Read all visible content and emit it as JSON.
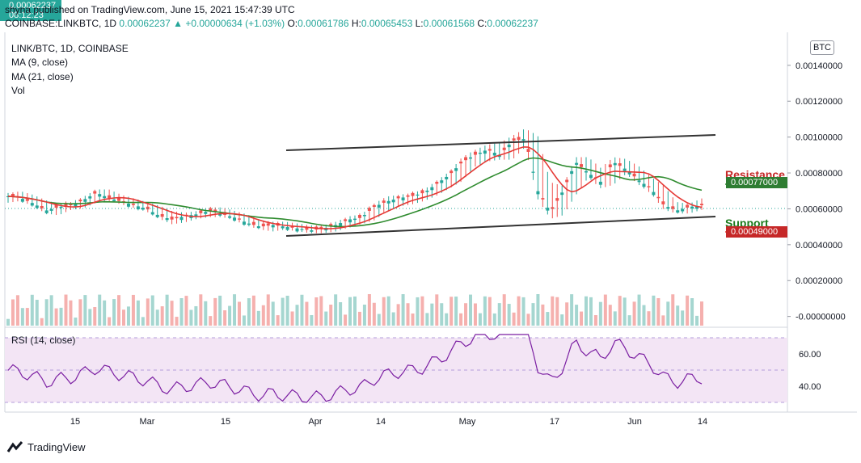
{
  "header": {
    "published": "shyna published on TradingView.com, June 15, 2021 15:47:39 UTC",
    "symbol": "COINBASE:LINKBTC, 1D",
    "change": "0.00062237 ▲ +0.00000634 (+1.03%)",
    "o_label": "O:",
    "o_value": "0.00061786",
    "h_label": "H:",
    "h_value": "0.00065453",
    "l_label": "L:",
    "l_value": "0.00061568",
    "c_label": "C:",
    "c_value": "0.00062237"
  },
  "legend": {
    "title": "LINK/BTC, 1D, COINBASE",
    "ma9": "MA (9, close)",
    "ma21": "MA (21, close)",
    "vol": "Vol",
    "rsi": "RSI (14, close)"
  },
  "currency_button": "BTC",
  "annotations": {
    "resistance_label": "Resistance",
    "resistance_value": "0.00077000",
    "support_label": "Support",
    "support_value": "0.00049000",
    "last_price": "0.00062237",
    "countdown": "08:12:23"
  },
  "footer": {
    "brand": "TradingView"
  },
  "colors": {
    "up": "#26a69a",
    "down": "#ef5350",
    "ma9": "#e53935",
    "ma21": "#2e8b2e",
    "rsi_line": "#7b1fa2",
    "rsi_band": "#f3e5f5",
    "resistance": "#c62828",
    "support": "#1b7a1b",
    "channel": "#333333"
  },
  "chart_data": {
    "type": "candlestick",
    "price_axis_ticks": [
      "0.00140000",
      "0.00120000",
      "0.00100000",
      "0.00080000",
      "0.00060000",
      "0.00040000",
      "0.00020000",
      "-0.00000000"
    ],
    "rsi_axis_ticks": [
      "60.00",
      "40.00"
    ],
    "date_labels": [
      "15",
      "Mar",
      "15",
      "Apr",
      "14",
      "May",
      "17",
      "Jun",
      "14"
    ],
    "price_range": [
      -1e-05,
      0.00155
    ],
    "rsi_range": [
      25,
      75
    ],
    "rsi_bands": [
      70,
      30
    ],
    "ohlc_sample": [
      [
        0.00066,
        0.00068,
        0.00064,
        0.00067
      ],
      [
        0.00067,
        0.00069,
        0.00065,
        0.00066
      ],
      [
        0.00066,
        0.00067,
        0.00062,
        0.00063
      ],
      [
        0.00063,
        0.00064,
        0.00058,
        0.00059
      ],
      [
        0.00059,
        0.00062,
        0.00057,
        0.00061
      ],
      [
        0.00061,
        0.00063,
        0.0006,
        0.00062
      ],
      [
        0.00062,
        0.00066,
        0.00061,
        0.00065
      ],
      [
        0.00065,
        0.0007,
        0.00064,
        0.00069
      ],
      [
        0.00069,
        0.0007,
        0.00065,
        0.00066
      ],
      [
        0.00066,
        0.00067,
        0.00063,
        0.00064
      ],
      [
        0.00064,
        0.00065,
        0.00061,
        0.00062
      ],
      [
        0.00062,
        0.00063,
        0.00059,
        0.0006
      ],
      [
        0.0006,
        0.00061,
        0.00055,
        0.00056
      ],
      [
        0.00056,
        0.00058,
        0.00052,
        0.00054
      ],
      [
        0.00054,
        0.00057,
        0.00053,
        0.00056
      ],
      [
        0.00056,
        0.00058,
        0.00055,
        0.00057
      ],
      [
        0.00057,
        0.0006,
        0.00056,
        0.00059
      ],
      [
        0.00059,
        0.0006,
        0.00056,
        0.00057
      ],
      [
        0.00057,
        0.00058,
        0.00054,
        0.00055
      ],
      [
        0.00055,
        0.00056,
        0.00051,
        0.00052
      ],
      [
        0.00052,
        0.00053,
        0.00049,
        0.0005
      ],
      [
        0.0005,
        0.00052,
        0.00048,
        0.00051
      ],
      [
        0.00051,
        0.00052,
        0.00049,
        0.0005
      ],
      [
        0.0005,
        0.00051,
        0.00048,
        0.00049
      ],
      [
        0.00049,
        0.0005,
        0.00047,
        0.00048
      ],
      [
        0.00048,
        0.0005,
        0.00047,
        0.00049
      ],
      [
        0.00049,
        0.00052,
        0.00048,
        0.00051
      ],
      [
        0.00051,
        0.00055,
        0.0005,
        0.00054
      ],
      [
        0.00054,
        0.00056,
        0.00052,
        0.00055
      ],
      [
        0.00055,
        0.00062,
        0.00054,
        0.00061
      ],
      [
        0.00061,
        0.00066,
        0.00059,
        0.00064
      ],
      [
        0.00064,
        0.00067,
        0.00062,
        0.00066
      ],
      [
        0.00066,
        0.00068,
        0.00063,
        0.00067
      ],
      [
        0.00067,
        0.0007,
        0.00065,
        0.00069
      ],
      [
        0.00069,
        0.00075,
        0.00068,
        0.00074
      ],
      [
        0.00074,
        0.0008,
        0.00072,
        0.00079
      ],
      [
        0.00079,
        0.00088,
        0.00076,
        0.00086
      ],
      [
        0.00086,
        0.00092,
        0.00084,
        0.0009
      ],
      [
        0.0009,
        0.00095,
        0.00087,
        0.00093
      ],
      [
        0.00093,
        0.00096,
        0.00088,
        0.0009
      ],
      [
        0.0009,
        0.001,
        0.00088,
        0.00098
      ],
      [
        0.00098,
        0.00104,
        0.00095,
        0.00099
      ],
      [
        0.00099,
        0.001,
        0.00066,
        0.0007
      ],
      [
        0.0007,
        0.00074,
        0.00055,
        0.00058
      ],
      [
        0.00058,
        0.00072,
        0.00057,
        0.0007
      ],
      [
        0.0007,
        0.00088,
        0.00068,
        0.00086
      ],
      [
        0.00086,
        0.00088,
        0.00078,
        0.0008
      ],
      [
        0.0008,
        0.00082,
        0.00072,
        0.00075
      ],
      [
        0.00075,
        0.00088,
        0.00074,
        0.00086
      ],
      [
        0.00086,
        0.00087,
        0.0008,
        0.00082
      ],
      [
        0.00082,
        0.00083,
        0.00074,
        0.00076
      ],
      [
        0.00076,
        0.00077,
        0.00069,
        0.00071
      ],
      [
        0.00071,
        0.00072,
        0.0006,
        0.00062
      ],
      [
        0.00062,
        0.00063,
        0.00058,
        0.00059
      ],
      [
        0.00059,
        0.00062,
        0.00058,
        0.00061
      ],
      [
        0.00061,
        0.00065,
        0.0006,
        0.00062
      ]
    ]
  }
}
